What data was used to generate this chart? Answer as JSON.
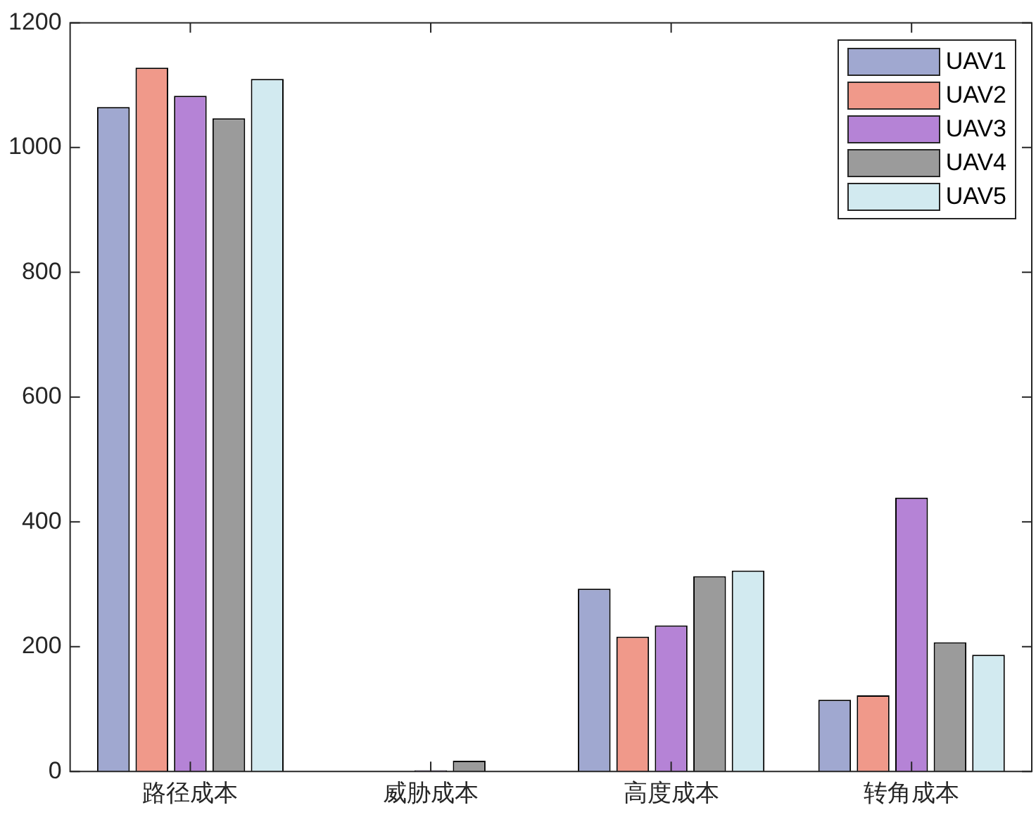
{
  "chart_data": {
    "type": "bar",
    "categories": [
      "路径成本",
      "威胁成本",
      "高度成本",
      "转角成本"
    ],
    "series": [
      {
        "name": "UAV1",
        "color": "#a0a8d0",
        "values": [
          1065,
          0,
          293,
          115
        ]
      },
      {
        "name": "UAV2",
        "color": "#f0998a",
        "values": [
          1128,
          0,
          216,
          122
        ]
      },
      {
        "name": "UAV3",
        "color": "#b583d6",
        "values": [
          1083,
          2,
          234,
          439
        ]
      },
      {
        "name": "UAV4",
        "color": "#9b9b9b",
        "values": [
          1047,
          17,
          313,
          207
        ]
      },
      {
        "name": "UAV5",
        "color": "#d2eaf0",
        "values": [
          1110,
          0,
          322,
          187
        ]
      }
    ],
    "ylim": [
      0,
      1200
    ],
    "yticks": [
      0,
      200,
      400,
      600,
      800,
      1000,
      1200
    ],
    "grid": false,
    "legend": "top right"
  }
}
